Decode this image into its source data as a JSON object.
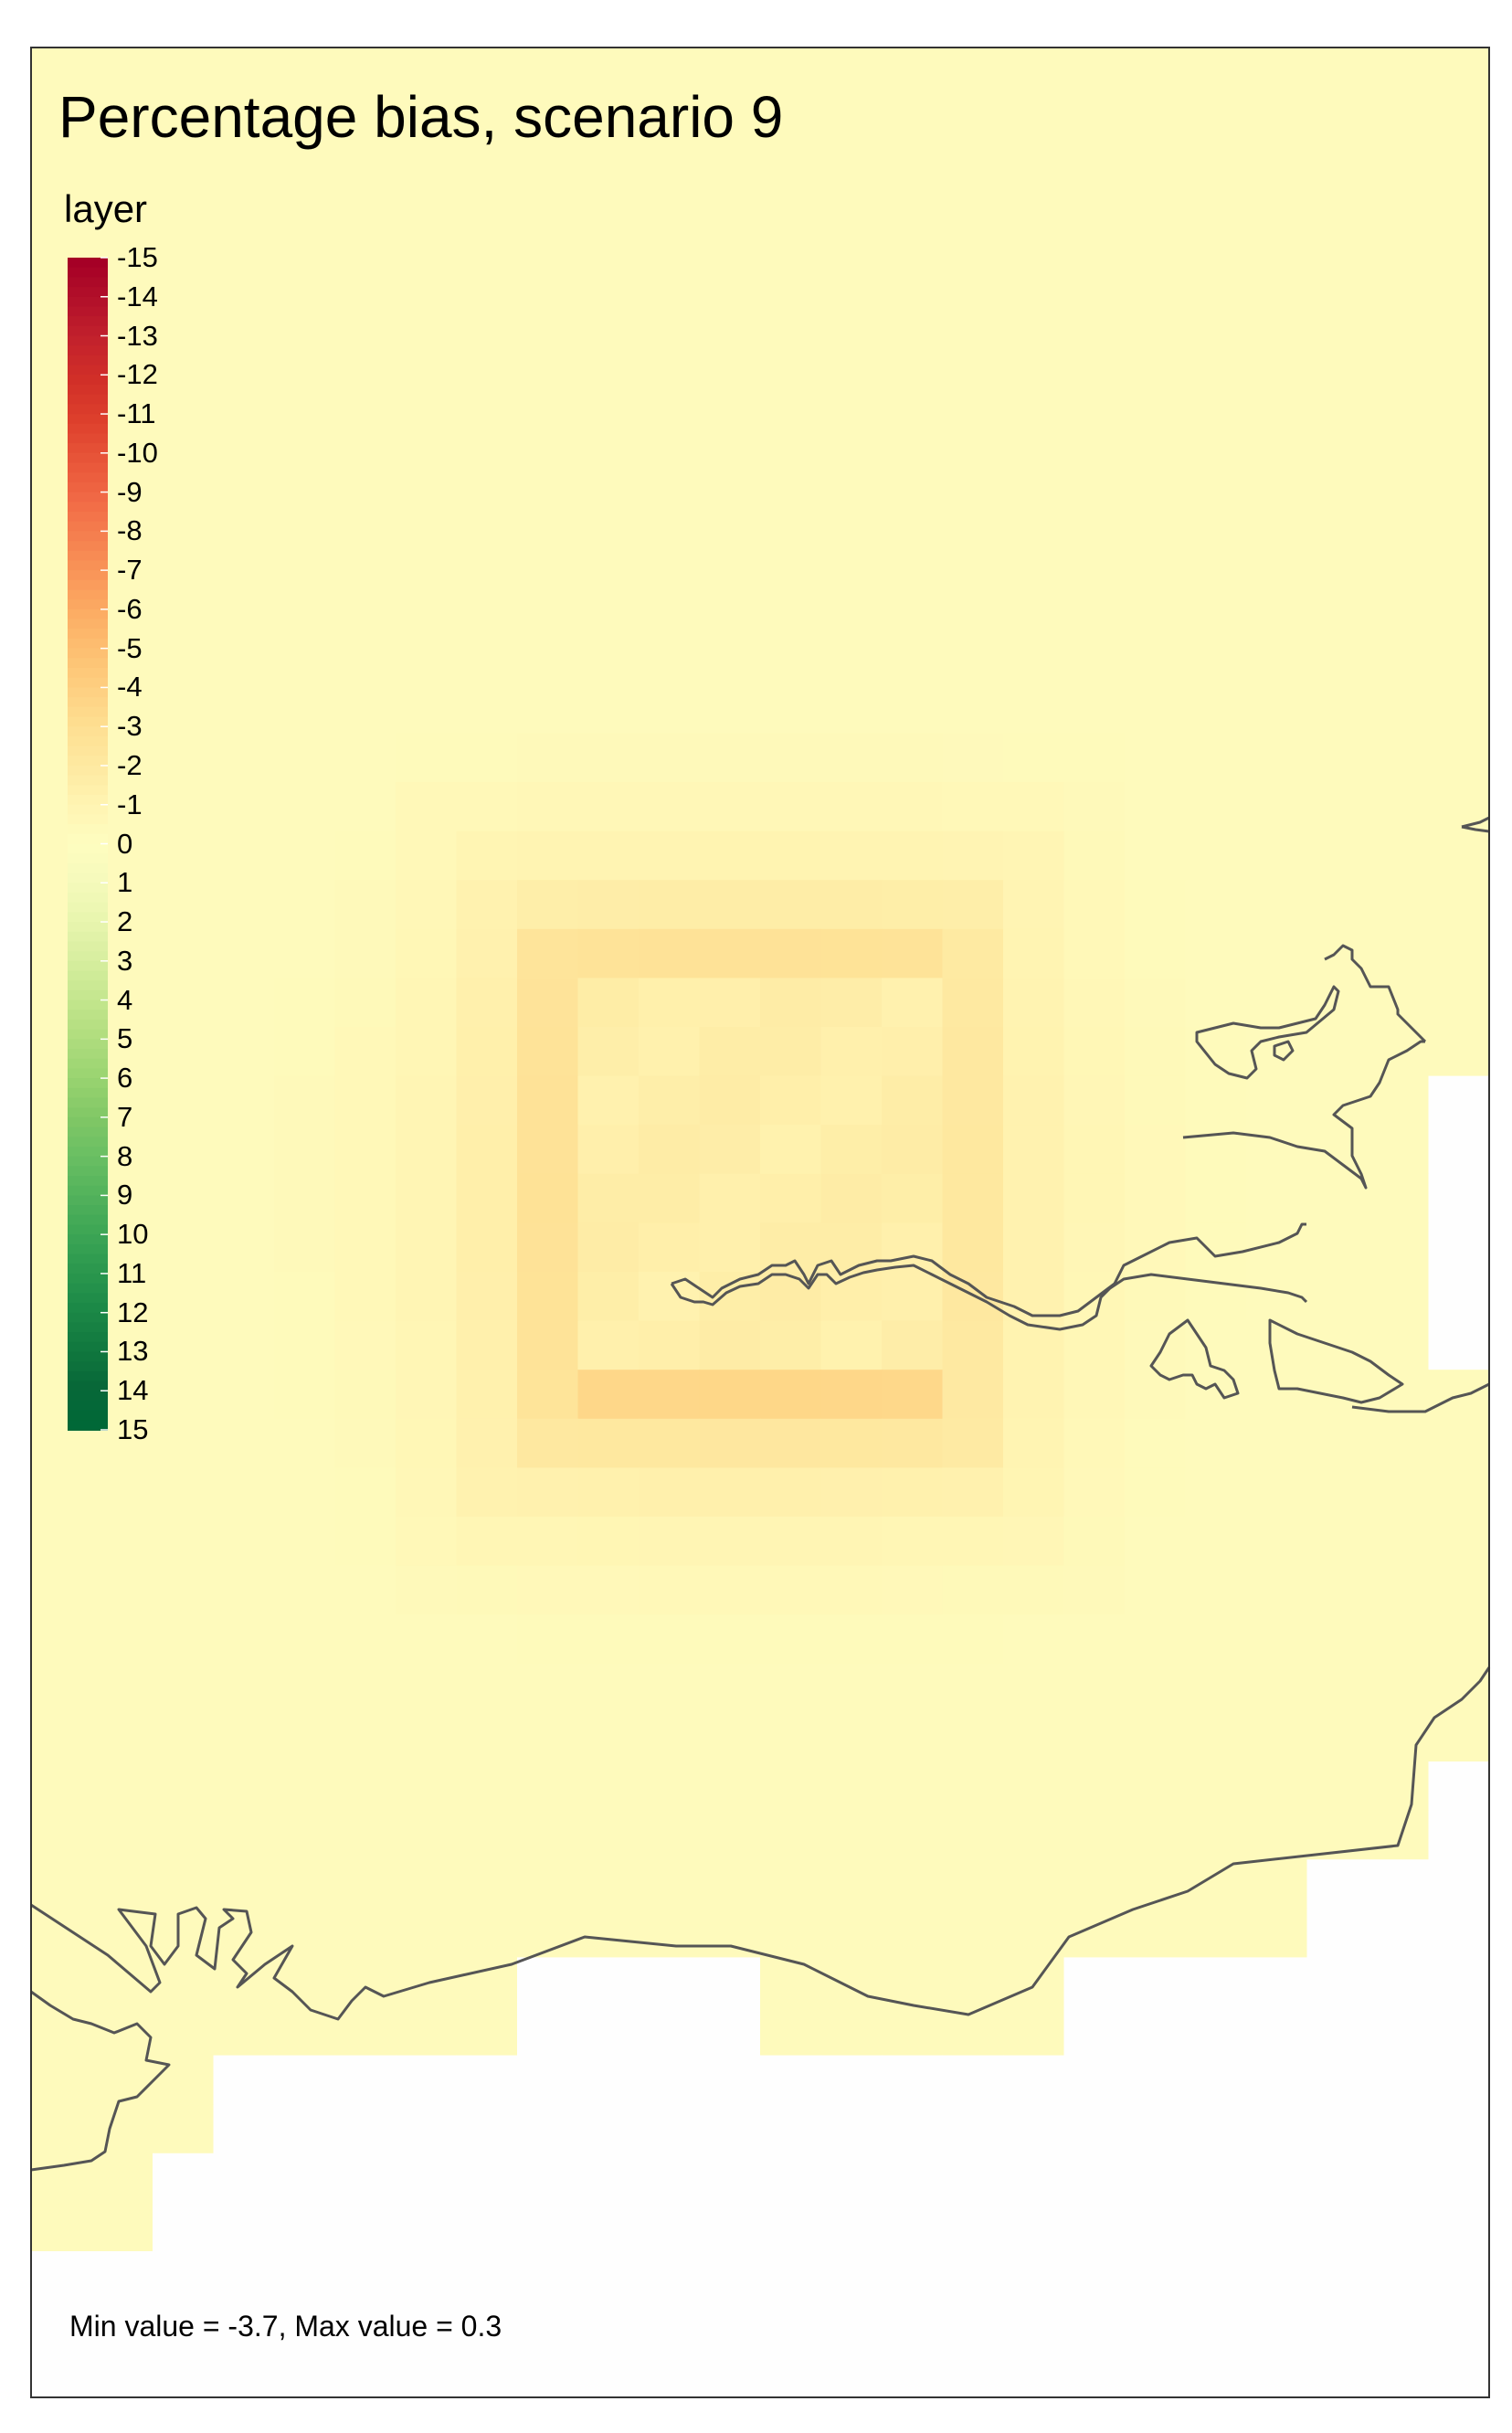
{
  "map": {
    "title": "Percentage bias, scenario 9",
    "stats_text": "Min value = -3.7, Max value = 0.3"
  },
  "legend": {
    "title": "layer",
    "labels": [
      "-15",
      "-14",
      "-13",
      "-12",
      "-11",
      "-10",
      "-9",
      "-8",
      "-7",
      "-6",
      "-5",
      "-4",
      "-3",
      "-2",
      "-1",
      "0",
      "1",
      "2",
      "3",
      "4",
      "5",
      "6",
      "7",
      "8",
      "9",
      "10",
      "11",
      "12",
      "13",
      "14",
      "15"
    ],
    "colors": [
      "#a50026",
      "#b3112a",
      "#c3222c",
      "#d12f28",
      "#dd3e2c",
      "#e75337",
      "#f06744",
      "#f57e4e",
      "#f99558",
      "#fcab63",
      "#fdbf71",
      "#fed081",
      "#fedf92",
      "#fee9a1",
      "#fff4b2",
      "#fefdc0",
      "#f5fabb",
      "#e8f5ae",
      "#d7ee9f",
      "#c4e68e",
      "#b0dd7e",
      "#9ad471",
      "#82c866",
      "#6bbf63",
      "#54b35c",
      "#3ea655",
      "#2b984e",
      "#1c8947",
      "#11793f",
      "#086838",
      "#006837"
    ],
    "domain_min": -15,
    "domain_max": 15
  },
  "raster": {
    "outside_color": "#fefefe",
    "base_value": -0.3,
    "anomaly": "hollow square of negative bias centred on the estuary, strongest ring about -3 to -3.7, interior about -1.5"
  }
}
